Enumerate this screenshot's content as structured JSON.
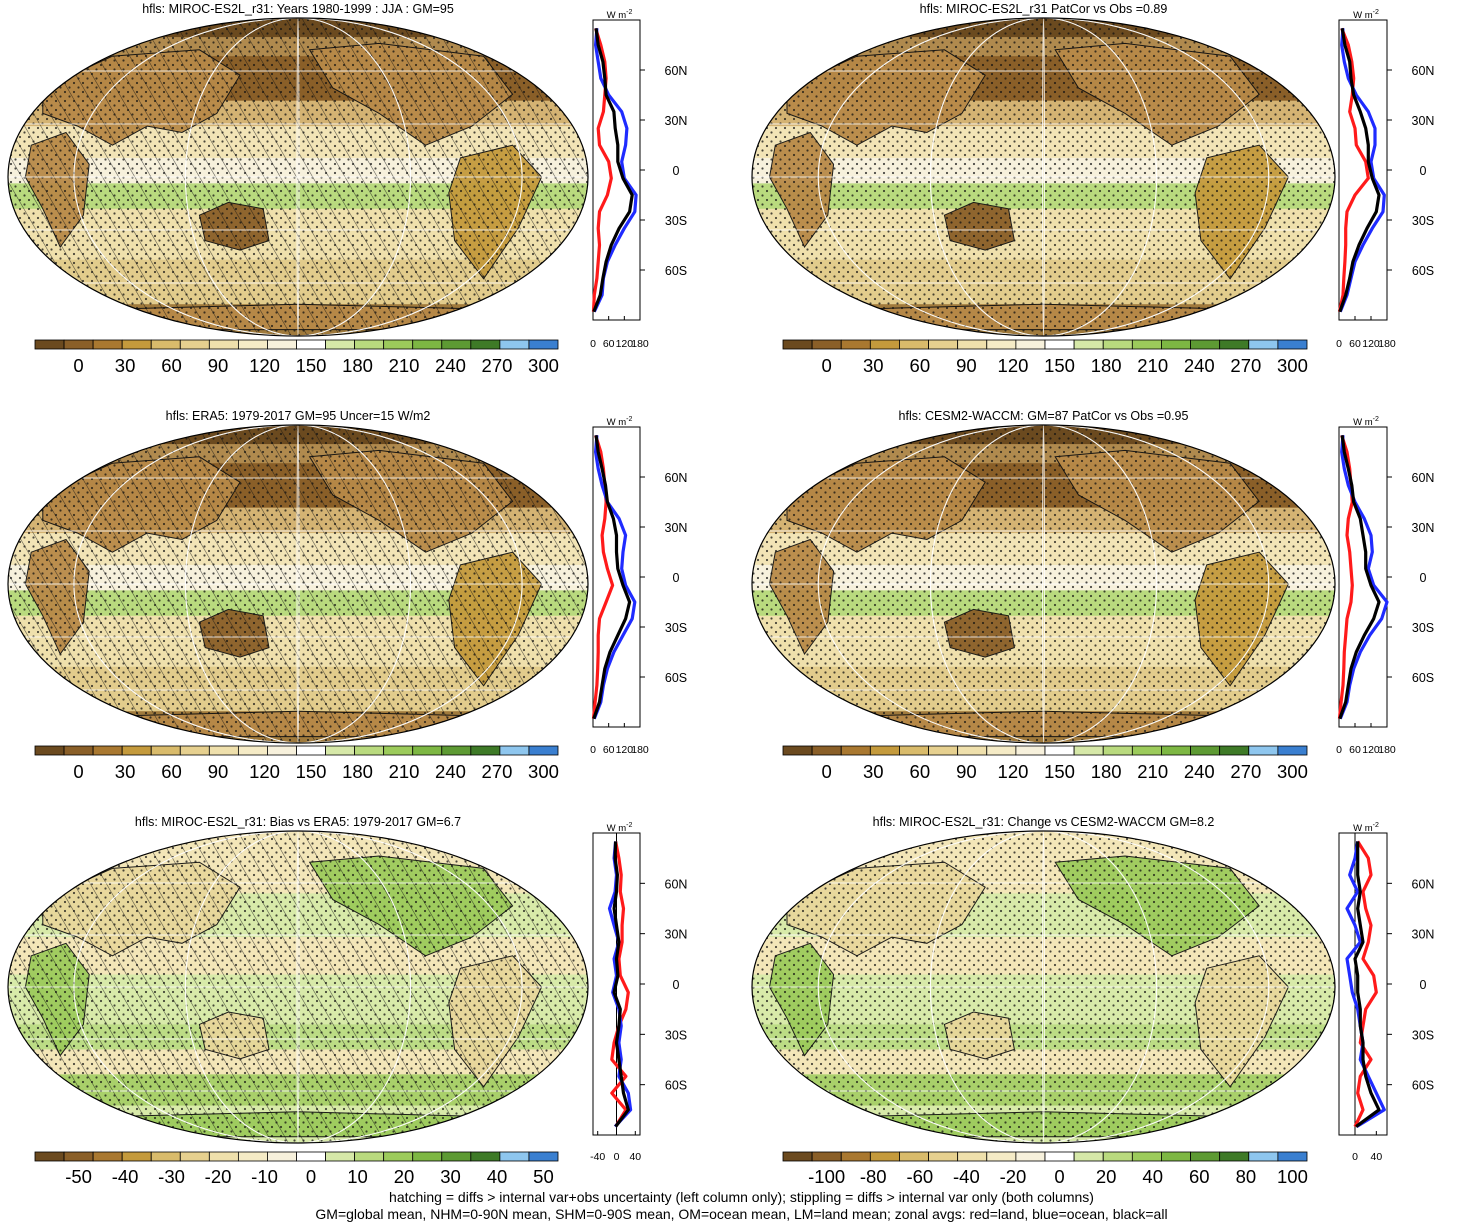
{
  "footer": {
    "line1": "hatching = diffs > internal var+obs uncertainty (left column only); stippling = diffs > internal var only (both columns)",
    "line2": "GM=global mean, NHM=0-90N mean, SHM=0-90S mean, OM=ocean mean, LM=land mean; zonal avgs: red=land, blue=ocean, black=all"
  },
  "colors": {
    "land": "#ff1a1a",
    "ocean": "#1f2bff",
    "all": "#000000",
    "palette": [
      "#6b4a1f",
      "#8a5f28",
      "#a97830",
      "#c49a3c",
      "#d9bb6b",
      "#e6d08f",
      "#efe0ac",
      "#f5ebc6",
      "#f7f1dc",
      "#ffffff",
      "#d6e8a8",
      "#b9da7e",
      "#9ccb5b",
      "#7db743",
      "#5d9a33",
      "#3e7a27",
      "#8ec6ee",
      "#3a7fd0"
    ]
  },
  "chart_data": [
    {
      "type": "heatmap",
      "title": "hfls: MIROC-ES2L_r31: Years 1980-1999 : JJA : GM=95",
      "colorbar_labels": [
        "0",
        "30",
        "60",
        "90",
        "120",
        "150",
        "180",
        "210",
        "240",
        "270",
        "300"
      ],
      "hatching": true,
      "zonal_axis": {
        "unit": "W m-2",
        "xticks": [
          "0",
          "60",
          "120",
          "180"
        ],
        "xlim": [
          0,
          180
        ],
        "ylabels": [
          "60N",
          "30N",
          "0",
          "30S",
          "60S"
        ]
      },
      "zonal": {
        "lat": [
          85,
          75,
          65,
          55,
          45,
          35,
          25,
          15,
          5,
          -5,
          -15,
          -25,
          -35,
          -45,
          -55,
          -65,
          -75,
          -85
        ],
        "land": [
          10,
          30,
          45,
          50,
          45,
          40,
          20,
          25,
          60,
          70,
          55,
          25,
          20,
          25,
          20,
          15,
          5,
          2
        ],
        "ocean": [
          15,
          10,
          20,
          30,
          60,
          110,
          130,
          125,
          110,
          120,
          165,
          160,
          120,
          85,
          55,
          40,
          35,
          5
        ],
        "all": [
          12,
          20,
          38,
          45,
          50,
          80,
          85,
          95,
          95,
          115,
          150,
          140,
          100,
          70,
          50,
          38,
          28,
          3
        ]
      }
    },
    {
      "type": "heatmap",
      "title": "hfls: MIROC-ES2L_r31 PatCor vs Obs =0.89",
      "colorbar_labels": [
        "0",
        "30",
        "60",
        "90",
        "120",
        "150",
        "180",
        "210",
        "240",
        "270",
        "300"
      ],
      "hatching": false,
      "zonal_axis": {
        "unit": "W m-2",
        "xticks": [
          "0",
          "60",
          "120",
          "180"
        ],
        "xlim": [
          0,
          180
        ],
        "ylabels": [
          "60N",
          "30N",
          "0",
          "30S",
          "60S"
        ]
      },
      "zonal": {
        "lat": [
          85,
          75,
          65,
          55,
          45,
          35,
          25,
          15,
          5,
          -5,
          -15,
          -25,
          -35,
          -45,
          -55,
          -65,
          -75,
          -85
        ],
        "land": [
          10,
          35,
          48,
          55,
          50,
          40,
          60,
          65,
          100,
          110,
          60,
          30,
          25,
          25,
          22,
          18,
          15,
          2
        ],
        "ocean": [
          15,
          10,
          20,
          35,
          65,
          110,
          135,
          135,
          120,
          130,
          170,
          165,
          125,
          90,
          60,
          45,
          30,
          5
        ],
        "all": [
          12,
          22,
          40,
          45,
          55,
          80,
          100,
          110,
          110,
          125,
          150,
          140,
          105,
          75,
          52,
          40,
          25,
          3
        ]
      }
    },
    {
      "type": "heatmap",
      "title": "hfls: ERA5: 1979-2017 GM=95 Uncer=15 W/m2",
      "colorbar_labels": [
        "0",
        "30",
        "60",
        "90",
        "120",
        "150",
        "180",
        "210",
        "240",
        "270",
        "300"
      ],
      "hatching": true,
      "zonal_axis": {
        "unit": "W m-2",
        "xticks": [
          "0",
          "60",
          "120",
          "180"
        ],
        "xlim": [
          0,
          180
        ],
        "ylabels": [
          "60N",
          "30N",
          "0",
          "30S",
          "60S"
        ]
      },
      "zonal": {
        "lat": [
          85,
          75,
          65,
          55,
          45,
          35,
          25,
          15,
          5,
          -5,
          -15,
          -25,
          -35,
          -45,
          -55,
          -65,
          -75,
          -85
        ],
        "land": [
          10,
          30,
          40,
          45,
          50,
          45,
          35,
          40,
          55,
          75,
          50,
          25,
          20,
          20,
          18,
          15,
          8,
          2
        ],
        "ocean": [
          15,
          10,
          20,
          35,
          55,
          100,
          125,
          115,
          110,
          125,
          160,
          150,
          115,
          80,
          55,
          40,
          30,
          5
        ],
        "all": [
          12,
          20,
          35,
          48,
          55,
          78,
          90,
          90,
          95,
          115,
          140,
          125,
          95,
          65,
          45,
          35,
          25,
          3
        ]
      }
    },
    {
      "type": "heatmap",
      "title": "hfls: CESM2-WACCM: GM=87 PatCor vs Obs =0.95",
      "colorbar_labels": [
        "0",
        "30",
        "60",
        "90",
        "120",
        "150",
        "180",
        "210",
        "240",
        "270",
        "300"
      ],
      "hatching": false,
      "zonal_axis": {
        "unit": "W m-2",
        "xticks": [
          "0",
          "60",
          "120",
          "180"
        ],
        "xlim": [
          0,
          180
        ],
        "ylabels": [
          "60N",
          "30N",
          "0",
          "30S",
          "60S"
        ]
      },
      "zonal": {
        "lat": [
          85,
          75,
          65,
          55,
          45,
          35,
          25,
          15,
          5,
          -5,
          -15,
          -25,
          -35,
          -45,
          -55,
          -65,
          -75,
          -85
        ],
        "land": [
          10,
          30,
          40,
          45,
          50,
          35,
          30,
          40,
          45,
          50,
          45,
          30,
          25,
          20,
          18,
          15,
          8,
          2
        ],
        "ocean": [
          15,
          10,
          20,
          35,
          60,
          95,
          120,
          125,
          110,
          130,
          180,
          160,
          115,
          80,
          55,
          40,
          30,
          5
        ],
        "all": [
          12,
          20,
          35,
          48,
          55,
          80,
          90,
          100,
          100,
          120,
          150,
          130,
          95,
          65,
          45,
          35,
          25,
          3
        ]
      }
    },
    {
      "type": "heatmap",
      "title": "hfls: MIROC-ES2L_r31: Bias vs ERA5: 1979-2017 GM=6.7",
      "colorbar_labels": [
        "-50",
        "-40",
        "-30",
        "-20",
        "-10",
        "0",
        "10",
        "20",
        "30",
        "40",
        "50"
      ],
      "hatching": true,
      "zonal_axis": {
        "unit": "W m-2",
        "xticks": [
          "-40",
          "0",
          "40"
        ],
        "xlim": [
          -50,
          50
        ],
        "ylabels": [
          "60N",
          "30N",
          "0",
          "30S",
          "60S"
        ]
      },
      "zonal": {
        "lat": [
          85,
          75,
          65,
          55,
          45,
          35,
          25,
          15,
          5,
          -5,
          -15,
          -25,
          -35,
          -45,
          -55,
          -65,
          -75,
          -85
        ],
        "land": [
          -2,
          5,
          10,
          8,
          15,
          12,
          12,
          5,
          8,
          25,
          20,
          5,
          -5,
          -10,
          20,
          -10,
          20,
          -2
        ],
        "ocean": [
          -2,
          -5,
          0,
          -3,
          -15,
          -5,
          5,
          -5,
          0,
          -8,
          5,
          10,
          5,
          10,
          5,
          25,
          30,
          -3
        ],
        "all": [
          -2,
          -3,
          2,
          0,
          -5,
          0,
          5,
          0,
          3,
          -5,
          8,
          5,
          0,
          5,
          10,
          15,
          25,
          -2
        ]
      }
    },
    {
      "type": "heatmap",
      "title": "hfls: MIROC-ES2L_r31: Change vs CESM2-WACCM GM=8.2",
      "colorbar_labels": [
        "-100",
        "-80",
        "-60",
        "-40",
        "-20",
        "0",
        "20",
        "40",
        "60",
        "80",
        "100"
      ],
      "hatching": false,
      "zonal_axis": {
        "unit": "W m-2",
        "xticks": [
          "0",
          "40"
        ],
        "xlim": [
          -30,
          60
        ],
        "ylabels": [
          "60N",
          "30N",
          "0",
          "30S",
          "60S"
        ]
      },
      "zonal": {
        "lat": [
          85,
          75,
          65,
          55,
          45,
          35,
          25,
          15,
          5,
          -5,
          -15,
          -25,
          -35,
          -45,
          -55,
          -65,
          -75,
          -85
        ],
        "land": [
          5,
          25,
          30,
          15,
          20,
          30,
          25,
          15,
          35,
          40,
          20,
          15,
          10,
          30,
          10,
          5,
          15,
          0
        ],
        "ocean": [
          5,
          0,
          -10,
          5,
          -15,
          0,
          10,
          -15,
          -10,
          -5,
          5,
          10,
          15,
          10,
          25,
          40,
          55,
          3
        ],
        "all": [
          5,
          5,
          5,
          10,
          5,
          10,
          15,
          0,
          5,
          5,
          10,
          10,
          15,
          15,
          20,
          30,
          45,
          2
        ]
      }
    }
  ]
}
